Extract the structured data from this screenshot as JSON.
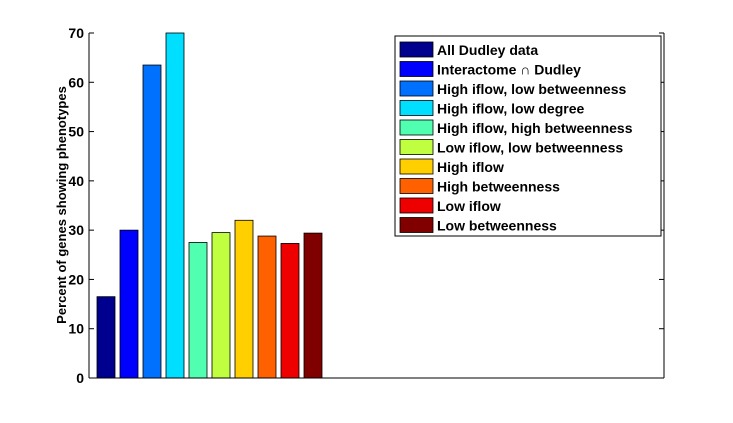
{
  "chart_data": {
    "type": "bar",
    "ylabel": "Percent of genes showing phenotypes",
    "xlabel": "",
    "ylim": [
      0,
      70
    ],
    "yticks": [
      0,
      10,
      20,
      30,
      40,
      50,
      60,
      70
    ],
    "grid": false,
    "legend_position": "top-right",
    "categories": [
      "All Dudley data",
      "Interactome ∩ Dudley",
      "High iflow, low betweenness",
      "High iflow, low degree",
      "High iflow, high betweenness",
      "Low iflow, low betweenness",
      "High iflow",
      "High betweenness",
      "Low iflow",
      "Low betweenness"
    ],
    "values": [
      16.5,
      30,
      63.5,
      70,
      27.5,
      29.5,
      32,
      28.8,
      27.3,
      29.4
    ],
    "colors": [
      "#00008f",
      "#0000ff",
      "#0070ff",
      "#00dfff",
      "#50ffb0",
      "#bfff40",
      "#ffcf00",
      "#ff6000",
      "#ef0000",
      "#800000"
    ]
  }
}
